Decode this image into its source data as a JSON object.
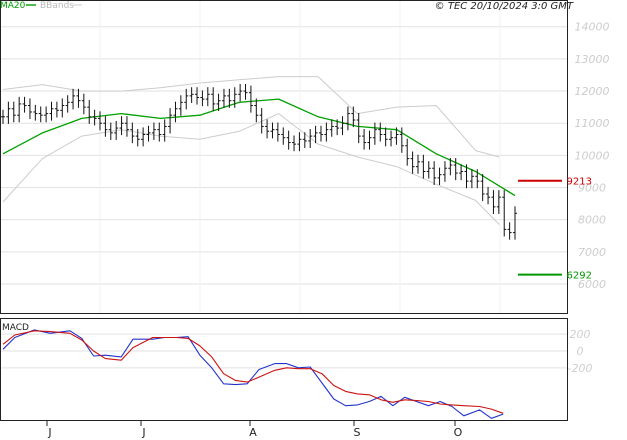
{
  "copyright": "© TEC 20/10/2024 3:0 GMT",
  "legend": {
    "ma": "MA20",
    "bb": "BBands"
  },
  "macd_title": "MACD",
  "colors": {
    "ma": "#00a000",
    "bands": "#cccccc",
    "resistance": "#cc0000",
    "support": "#009900",
    "macd": "#2233cc",
    "signal": "#cc1111",
    "bars": "#111111",
    "grid": "#e2e2e2"
  },
  "levels": {
    "resistance": {
      "value": 9213,
      "label": "9213"
    },
    "support": {
      "value": 6292,
      "label": "6292"
    }
  },
  "chart_data": [
    {
      "type": "line",
      "title": "",
      "x_month_labels": [
        "J",
        "J",
        "A",
        "S",
        "O"
      ],
      "y_ticks": [
        "14000",
        "13000",
        "12000",
        "11000",
        "10000",
        "9000",
        "8000",
        "7000",
        "6000"
      ],
      "y_values": [
        14000,
        13000,
        12000,
        11000,
        10000,
        9000,
        8000,
        7000,
        6000
      ],
      "ylim": [
        5100,
        14800
      ],
      "grid": true,
      "series": [
        {
          "name": "MA20",
          "x": [
            0,
            10,
            20,
            30,
            40,
            50,
            60,
            70,
            80,
            90,
            100,
            110,
            120,
            130
          ],
          "values": [
            10050,
            10700,
            11150,
            11300,
            11150,
            11250,
            11650,
            11750,
            11200,
            10900,
            10800,
            10050,
            9500,
            8750
          ]
        },
        {
          "name": "BBands",
          "x": [
            0,
            10,
            20,
            30,
            40,
            50,
            60,
            70,
            80,
            90,
            100,
            110,
            120,
            126
          ],
          "values": [
            12050,
            12200,
            12000,
            12000,
            12100,
            12250,
            12350,
            12450,
            12450,
            11300,
            11500,
            11550,
            10150,
            9950
          ]
        },
        {
          "name": "BBands",
          "x": [
            0,
            10,
            20,
            30,
            40,
            50,
            60,
            70,
            80,
            90,
            100,
            110,
            120,
            126
          ],
          "values": [
            8550,
            9900,
            10600,
            10800,
            10600,
            10500,
            10750,
            11300,
            10350,
            9950,
            9650,
            9100,
            8600,
            7850
          ]
        }
      ],
      "ohlc_close": [
        11200,
        11450,
        11250,
        11600,
        11550,
        11350,
        11300,
        11250,
        11300,
        11450,
        11400,
        11550,
        11650,
        11850,
        11700,
        11500,
        11200,
        11150,
        11000,
        10800,
        10700,
        10850,
        11000,
        10800,
        10600,
        10500,
        10650,
        10700,
        10800,
        10650,
        10900,
        11250,
        11450,
        11650,
        11850,
        11900,
        11800,
        11750,
        11900,
        11600,
        11700,
        11850,
        11700,
        11900,
        12000,
        11950,
        11550,
        11250,
        10900,
        10750,
        10800,
        10650,
        10550,
        10400,
        10350,
        10500,
        10450,
        10600,
        10700,
        10650,
        10800,
        10900,
        10850,
        11000,
        11300,
        11100,
        10600,
        10400,
        10550,
        10800,
        10650,
        10500,
        10550,
        10650,
        10300,
        9900,
        9650,
        9800,
        9500,
        9600,
        9300,
        9400,
        9600,
        9700,
        9450,
        9500,
        9200,
        9350,
        9200,
        8800,
        8700,
        8400,
        8700,
        7700,
        7600,
        8200
      ],
      "ohlc_range": 220
    },
    {
      "type": "line",
      "title": "",
      "y_ticks": [
        "200",
        "0",
        "-200"
      ],
      "y_values": [
        200,
        0,
        -200
      ],
      "ylim": [
        -820,
        380
      ],
      "series": [
        {
          "name": "",
          "x": [
            0,
            3,
            8,
            12,
            17,
            20,
            23,
            26,
            30,
            33,
            38,
            41,
            44,
            47,
            50,
            53,
            56,
            59,
            62,
            65,
            69,
            72,
            75,
            78,
            81,
            84,
            87,
            90,
            93,
            96,
            99,
            102,
            105,
            108,
            111,
            114,
            117,
            121,
            124,
            127
          ],
          "values": [
            20,
            160,
            250,
            210,
            240,
            150,
            -60,
            -50,
            -70,
            140,
            140,
            160,
            160,
            170,
            -50,
            -200,
            -390,
            -400,
            -390,
            -220,
            -150,
            -150,
            -200,
            -190,
            -380,
            -570,
            -650,
            -640,
            -600,
            -540,
            -650,
            -550,
            -600,
            -650,
            -600,
            -660,
            -770,
            -700,
            -800,
            -750
          ]
        },
        {
          "name": "",
          "x": [
            0,
            3,
            8,
            12,
            17,
            20,
            23,
            26,
            30,
            33,
            38,
            41,
            44,
            47,
            50,
            53,
            56,
            59,
            62,
            65,
            69,
            72,
            75,
            78,
            81,
            84,
            87,
            90,
            93,
            96,
            99,
            102,
            105,
            108,
            111,
            114,
            117,
            121,
            124,
            127
          ],
          "values": [
            80,
            190,
            240,
            230,
            210,
            130,
            0,
            -90,
            -110,
            40,
            160,
            160,
            160,
            150,
            60,
            -70,
            -270,
            -350,
            -370,
            -310,
            -230,
            -200,
            -210,
            -210,
            -270,
            -410,
            -480,
            -510,
            -520,
            -580,
            -610,
            -580,
            -590,
            -600,
            -630,
            -640,
            -650,
            -660,
            -690,
            -740
          ]
        }
      ]
    }
  ]
}
